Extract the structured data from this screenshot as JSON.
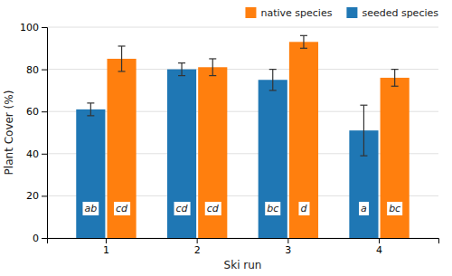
{
  "chart_data": {
    "type": "bar",
    "xlabel": "Ski run",
    "ylabel": "Plant Cover (%)",
    "categories": [
      "1",
      "2",
      "3",
      "4"
    ],
    "series": [
      {
        "name": "seeded species",
        "values": [
          61,
          80,
          75,
          51
        ],
        "errors": [
          3,
          3,
          5,
          12
        ],
        "annotations": [
          "ab",
          "cd",
          "bc",
          "a"
        ]
      },
      {
        "name": "native species",
        "values": [
          85,
          81,
          93,
          76
        ],
        "errors": [
          6,
          4,
          3,
          4
        ],
        "annotations": [
          "cd",
          "cd",
          "d",
          "bc"
        ]
      }
    ],
    "ylim": [
      0,
      100
    ],
    "yticks": [
      0,
      20,
      40,
      60,
      80,
      100
    ],
    "grid": true,
    "legend": "upper right"
  }
}
